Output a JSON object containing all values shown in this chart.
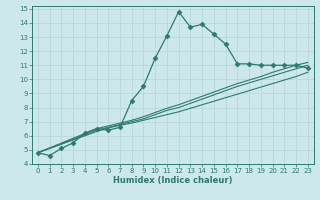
{
  "xlabel": "Humidex (Indice chaleur)",
  "ylabel": "",
  "bg_color": "#cce8ec",
  "grid_color": "#b8d8dc",
  "line_color": "#2d7a6e",
  "xlim": [
    -0.5,
    23.5
  ],
  "ylim": [
    4,
    15.2
  ],
  "xticks": [
    0,
    1,
    2,
    3,
    4,
    5,
    6,
    7,
    8,
    9,
    10,
    11,
    12,
    13,
    14,
    15,
    16,
    17,
    18,
    19,
    20,
    21,
    22,
    23
  ],
  "yticks": [
    4,
    5,
    6,
    7,
    8,
    9,
    10,
    11,
    12,
    13,
    14,
    15
  ],
  "series": [
    {
      "x": [
        0,
        1,
        2,
        3,
        4,
        5,
        6,
        7,
        8,
        9,
        10,
        11,
        12,
        13,
        14,
        15,
        16,
        17,
        18,
        19,
        20,
        21,
        22,
        23
      ],
      "y": [
        4.8,
        4.6,
        5.1,
        5.5,
        6.2,
        6.5,
        6.4,
        6.6,
        8.5,
        9.5,
        11.5,
        13.1,
        14.8,
        13.7,
        13.9,
        13.2,
        12.5,
        11.1,
        11.1,
        11.0,
        11.0,
        11.0,
        11.0,
        10.8
      ],
      "marker": "D",
      "markersize": 2.5,
      "linewidth": 0.9
    },
    {
      "x": [
        0,
        5,
        6,
        7,
        8,
        9,
        10,
        11,
        12,
        13,
        14,
        15,
        16,
        17,
        18,
        19,
        20,
        21,
        22,
        23
      ],
      "y": [
        4.8,
        6.3,
        6.55,
        6.75,
        6.9,
        7.1,
        7.3,
        7.5,
        7.7,
        7.95,
        8.2,
        8.45,
        8.7,
        8.95,
        9.2,
        9.45,
        9.7,
        9.95,
        10.2,
        10.5
      ],
      "marker": null,
      "markersize": 0,
      "linewidth": 0.8
    },
    {
      "x": [
        0,
        5,
        6,
        7,
        8,
        9,
        10,
        11,
        12,
        13,
        14,
        15,
        16,
        17,
        18,
        19,
        20,
        21,
        22,
        23
      ],
      "y": [
        4.8,
        6.4,
        6.6,
        6.8,
        7.0,
        7.2,
        7.5,
        7.8,
        8.0,
        8.3,
        8.6,
        8.9,
        9.2,
        9.5,
        9.75,
        10.0,
        10.25,
        10.5,
        10.75,
        11.0
      ],
      "marker": null,
      "markersize": 0,
      "linewidth": 0.8
    },
    {
      "x": [
        0,
        5,
        6,
        7,
        8,
        9,
        10,
        11,
        12,
        13,
        14,
        15,
        16,
        17,
        18,
        19,
        20,
        21,
        22,
        23
      ],
      "y": [
        4.8,
        6.5,
        6.7,
        6.9,
        7.1,
        7.35,
        7.65,
        7.95,
        8.2,
        8.5,
        8.8,
        9.1,
        9.4,
        9.7,
        9.95,
        10.2,
        10.5,
        10.75,
        11.0,
        11.2
      ],
      "marker": null,
      "markersize": 0,
      "linewidth": 0.8
    }
  ]
}
